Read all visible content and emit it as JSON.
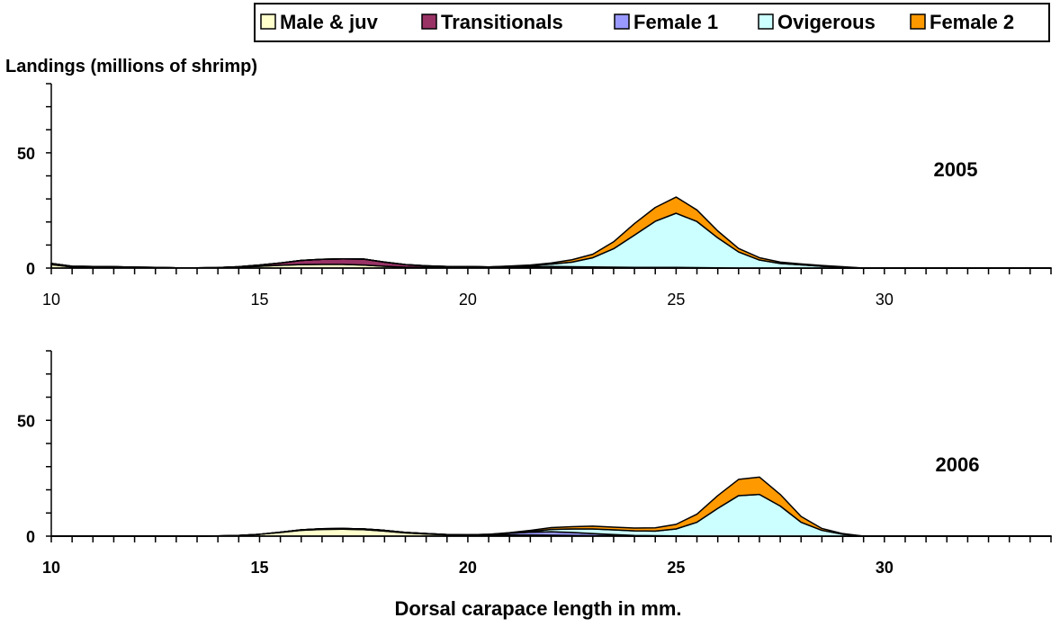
{
  "chart_data": {
    "type": "area",
    "stacked": true,
    "legend": {
      "placement": "top-right",
      "entries": [
        {
          "name": "Male & juv",
          "color": "#ffffcc"
        },
        {
          "name": "Transitionals",
          "color": "#993366"
        },
        {
          "name": "Female 1",
          "color": "#9999ff"
        },
        {
          "name": "Ovigerous",
          "color": "#ccffff"
        },
        {
          "name": "Female 2",
          "color": "#ff9900"
        }
      ]
    },
    "ylabel": "Landings (millions of shrimp)",
    "xlabel": "Dorsal carapace length in mm.",
    "xlim": [
      10,
      34
    ],
    "ylim": [
      0,
      80
    ],
    "xticks": [
      10,
      15,
      20,
      25,
      30
    ],
    "yticks": [
      0,
      50
    ],
    "panels": [
      {
        "label": "2005",
        "x": [
          10,
          10.5,
          11,
          11.5,
          12,
          12.5,
          13,
          13.5,
          14,
          14.5,
          15,
          15.5,
          16,
          16.5,
          17,
          17.5,
          18,
          18.5,
          19,
          19.5,
          20,
          20.5,
          21,
          21.5,
          22,
          22.5,
          23,
          23.5,
          24,
          24.5,
          25,
          25.5,
          26,
          26.5,
          27,
          27.5,
          28,
          28.5,
          29,
          29.5,
          30,
          30.5,
          31,
          31.5,
          32,
          32.5,
          33,
          33.5,
          34
        ],
        "series": [
          {
            "name": "Male & juv",
            "values": [
              1.5,
              0.5,
              0.5,
              0.5,
              0.3,
              0.2,
              0.1,
              0.1,
              0.2,
              0.4,
              0.8,
              1.2,
              1.5,
              1.6,
              1.6,
              1.3,
              0.8,
              0.4,
              0.3,
              0.2,
              0.2,
              0.1,
              0.1,
              0.1,
              0.1,
              0,
              0,
              0,
              0,
              0,
              0,
              0,
              0,
              0,
              0,
              0,
              0,
              0,
              0,
              0,
              0,
              0,
              0,
              0,
              0,
              0,
              0,
              0,
              0
            ]
          },
          {
            "name": "Transitionals",
            "values": [
              0.5,
              0.3,
              0.2,
              0.1,
              0.1,
              0.1,
              0,
              0,
              0,
              0.2,
              0.5,
              1,
              1.8,
              2.2,
              2.4,
              2.6,
              1.8,
              1.1,
              0.6,
              0.4,
              0.3,
              0.2,
              0.2,
              0.2,
              0.2,
              0.2,
              0.2,
              0.1,
              0.1,
              0.1,
              0.1,
              0.1,
              0,
              0,
              0,
              0,
              0,
              0,
              0,
              0,
              0,
              0,
              0,
              0,
              0,
              0,
              0,
              0,
              0
            ]
          },
          {
            "name": "Female 1",
            "values": [
              0,
              0,
              0,
              0,
              0,
              0,
              0,
              0,
              0,
              0,
              0,
              0,
              0,
              0,
              0,
              0,
              0,
              0,
              0.1,
              0.1,
              0.2,
              0.2,
              0.3,
              0.4,
              0.4,
              0.4,
              0.3,
              0.3,
              0.2,
              0.2,
              0.2,
              0.1,
              0.1,
              0,
              0,
              0,
              0,
              0,
              0,
              0,
              0,
              0,
              0,
              0,
              0,
              0,
              0,
              0,
              0
            ]
          },
          {
            "name": "Ovigerous",
            "values": [
              0,
              0,
              0,
              0,
              0,
              0,
              0,
              0,
              0,
              0,
              0,
              0,
              0,
              0,
              0,
              0,
              0,
              0,
              0,
              0,
              0,
              0,
              0.2,
              0.4,
              1,
              2,
              4,
              8,
              14,
              20,
              23.5,
              20,
              13,
              7,
              3.5,
              2,
              1.4,
              0.8,
              0.4,
              0,
              0,
              0,
              0,
              0,
              0,
              0,
              0,
              0,
              0
            ]
          },
          {
            "name": "Female 2",
            "values": [
              0,
              0,
              0,
              0,
              0,
              0,
              0,
              0,
              0,
              0,
              0,
              0,
              0,
              0,
              0,
              0,
              0,
              0,
              0,
              0,
              0,
              0,
              0.1,
              0.2,
              0.5,
              1,
              1.5,
              3,
              5,
              6,
              7,
              5,
              3,
              1.5,
              1,
              0.6,
              0.4,
              0.3,
              0.2,
              0,
              0,
              0,
              0,
              0,
              0,
              0,
              0,
              0,
              0
            ]
          }
        ]
      },
      {
        "label": "2006",
        "x": [
          10,
          10.5,
          11,
          11.5,
          12,
          12.5,
          13,
          13.5,
          14,
          14.5,
          15,
          15.5,
          16,
          16.5,
          17,
          17.5,
          18,
          18.5,
          19,
          19.5,
          20,
          20.5,
          21,
          21.5,
          22,
          22.5,
          23,
          23.5,
          24,
          24.5,
          25,
          25.5,
          26,
          26.5,
          27,
          27.5,
          28,
          28.5,
          29,
          29.5,
          30,
          30.5,
          31,
          31.5,
          32,
          32.5,
          33,
          33.5,
          34
        ],
        "series": [
          {
            "name": "Male & juv",
            "values": [
              0,
              0,
              0,
              0,
              0,
              0,
              0,
              0,
              0.1,
              0.3,
              0.8,
              1.6,
              2.5,
              2.9,
              3,
              2.8,
              2.2,
              1.4,
              0.9,
              0.6,
              0.4,
              0.4,
              0.4,
              0.4,
              0.3,
              0.2,
              0.1,
              0.1,
              0,
              0,
              0,
              0,
              0,
              0,
              0,
              0,
              0,
              0,
              0,
              0,
              0,
              0,
              0,
              0,
              0,
              0,
              0,
              0,
              0
            ]
          },
          {
            "name": "Transitionals",
            "values": [
              0,
              0,
              0,
              0,
              0,
              0,
              0,
              0,
              0,
              0,
              0,
              0.1,
              0.2,
              0.3,
              0.3,
              0.3,
              0.3,
              0.2,
              0.2,
              0.1,
              0.1,
              0.1,
              0.1,
              0.1,
              0.1,
              0.1,
              0.1,
              0.1,
              0,
              0,
              0,
              0,
              0,
              0,
              0,
              0,
              0,
              0,
              0,
              0,
              0,
              0,
              0,
              0,
              0,
              0,
              0,
              0,
              0
            ]
          },
          {
            "name": "Female 1",
            "values": [
              0,
              0,
              0,
              0,
              0,
              0,
              0,
              0,
              0,
              0,
              0,
              0,
              0,
              0,
              0,
              0,
              0,
              0,
              0,
              0,
              0.1,
              0.3,
              0.7,
              1.2,
              1.5,
              1.3,
              0.9,
              0.5,
              0.3,
              0.2,
              0.1,
              0,
              0,
              0,
              0,
              0,
              0,
              0,
              0,
              0,
              0,
              0,
              0,
              0,
              0,
              0,
              0,
              0,
              0
            ]
          },
          {
            "name": "Ovigerous",
            "values": [
              0,
              0,
              0,
              0,
              0,
              0,
              0,
              0,
              0,
              0,
              0,
              0,
              0,
              0,
              0,
              0,
              0,
              0,
              0,
              0,
              0,
              0,
              0.1,
              0.3,
              1,
              1.5,
              2,
              2,
              2,
              2,
              3,
              6,
              12,
              17.5,
              18,
              13,
              6,
              2.5,
              0.8,
              0,
              0,
              0,
              0,
              0,
              0,
              0,
              0,
              0,
              0
            ]
          },
          {
            "name": "Female 2",
            "values": [
              0,
              0,
              0,
              0,
              0,
              0,
              0,
              0,
              0,
              0,
              0,
              0,
              0,
              0,
              0,
              0,
              0,
              0,
              0,
              0,
              0,
              0,
              0.2,
              0.5,
              0.8,
              1,
              1.2,
              1.2,
              1.2,
              1.4,
              2,
              3.5,
              5.5,
              7,
              7.5,
              5,
              2.5,
              0.8,
              0.3,
              0,
              0,
              0,
              0,
              0,
              0,
              0,
              0,
              0,
              0
            ]
          }
        ]
      }
    ]
  }
}
